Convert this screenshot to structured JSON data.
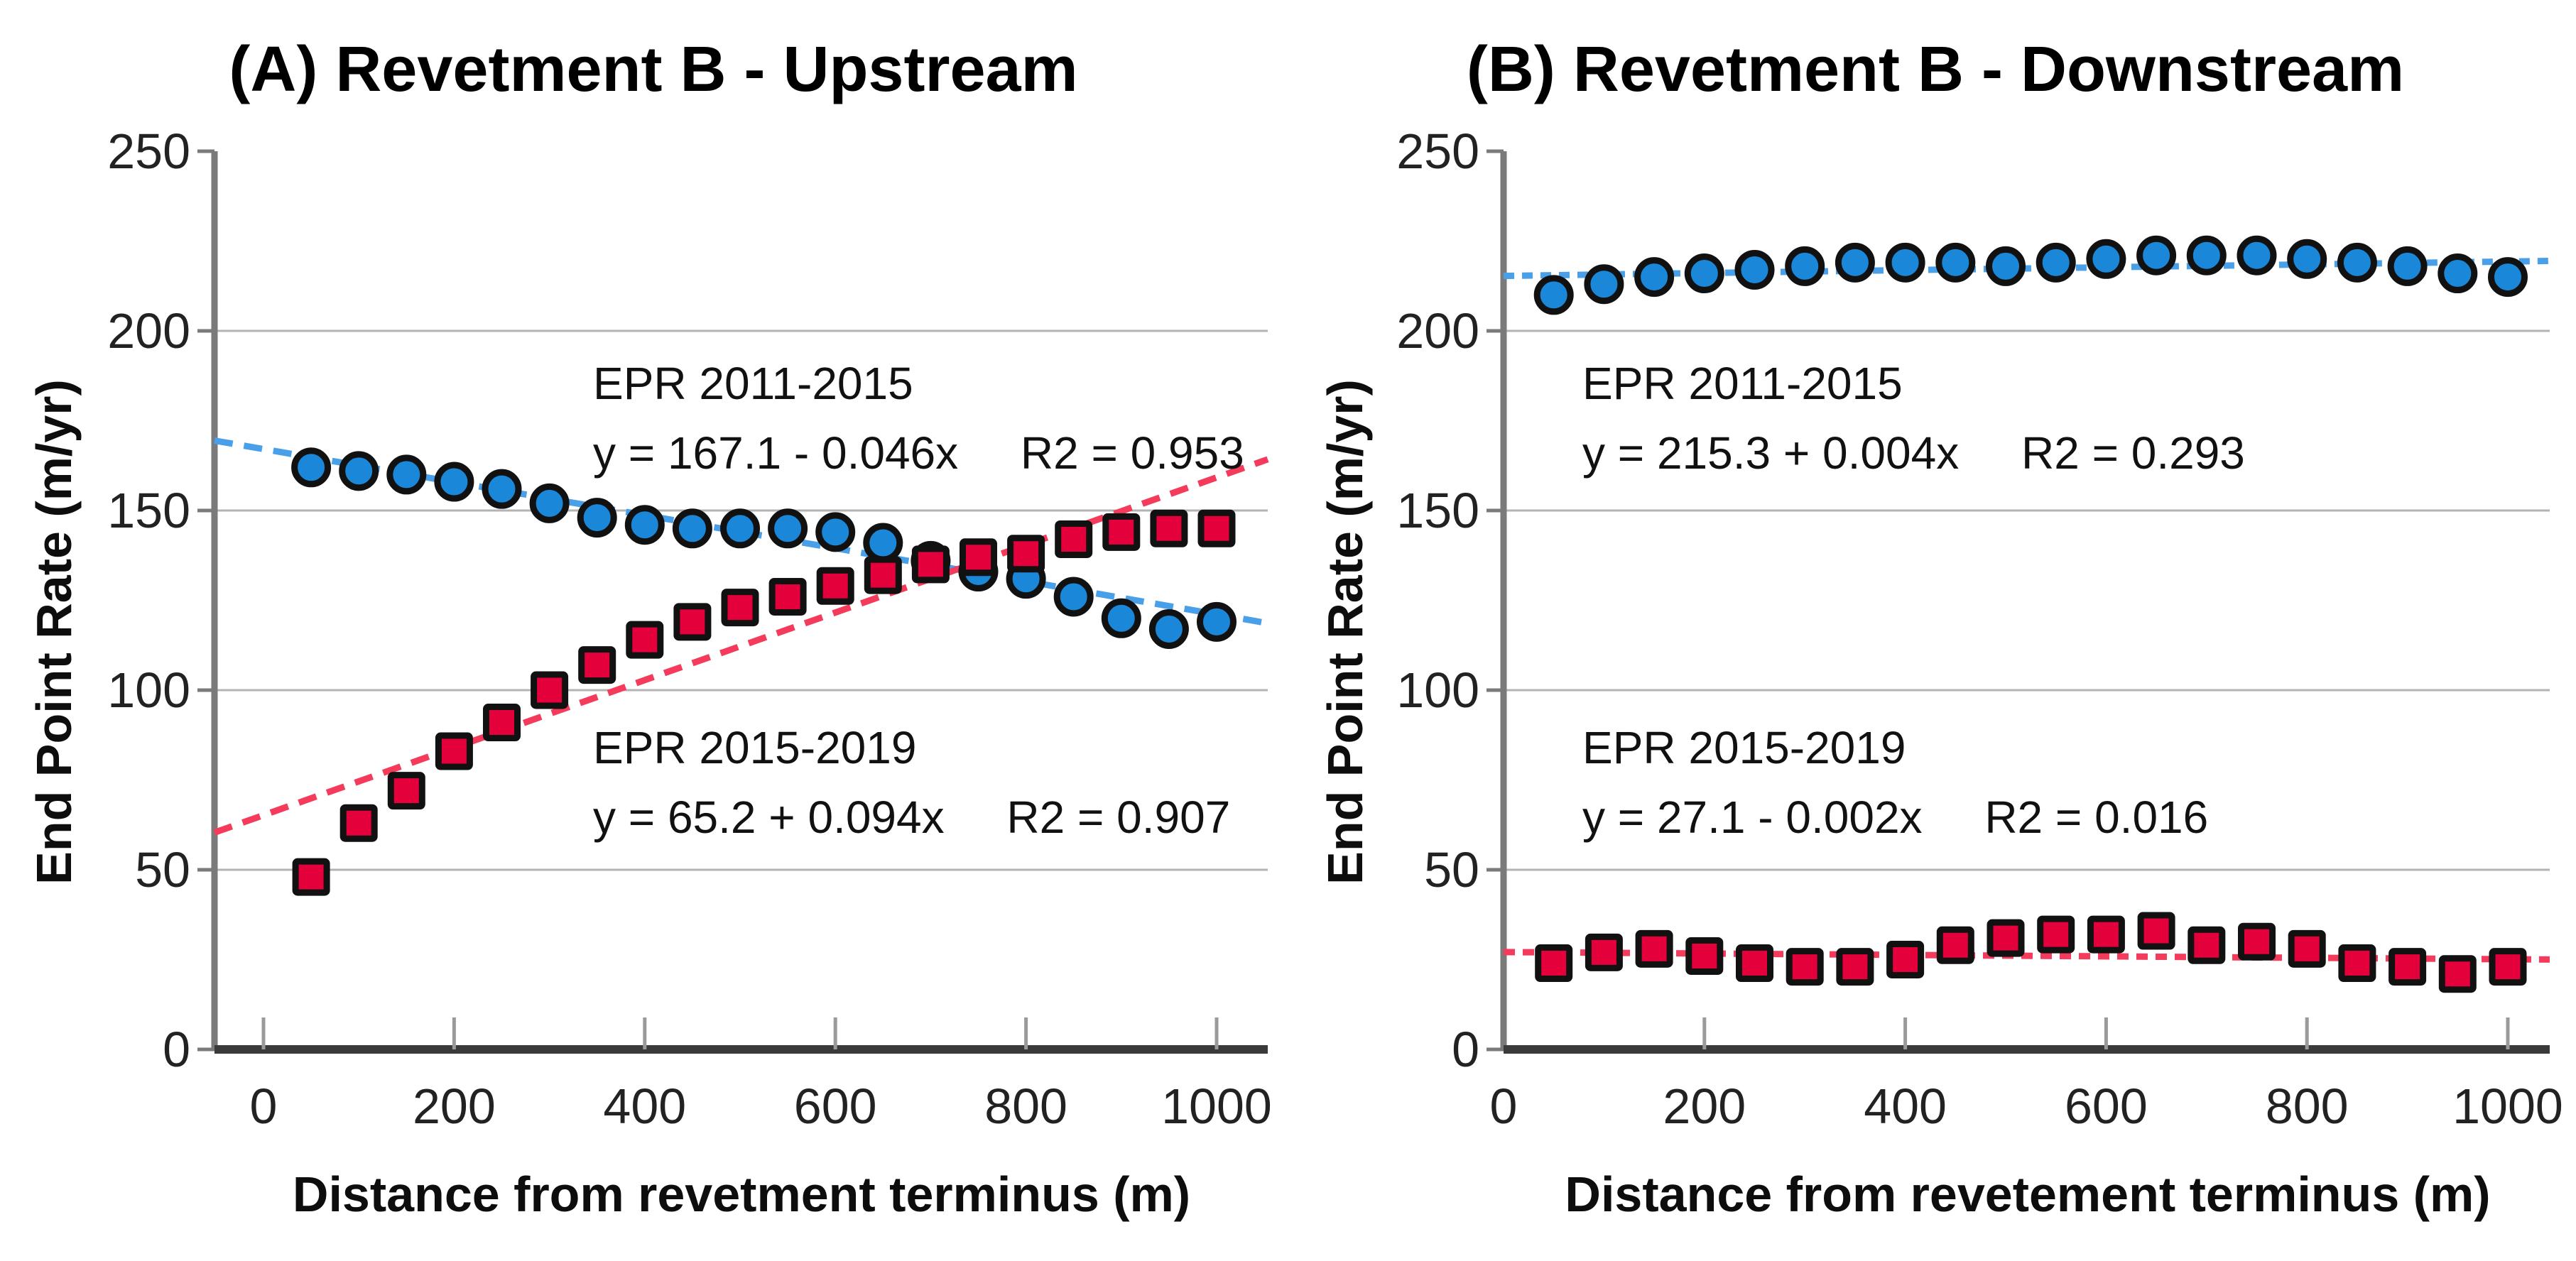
{
  "figure": {
    "background": "#ffffff",
    "text_color": "#000000",
    "grid_color": "#b3b3b3",
    "x_axis_color": "#3a3a3a",
    "y_axis_color": "#7a7a7a",
    "tick_color": "#9a9a9a",
    "marker_outline_color": "#111111"
  },
  "chart_data": [
    {
      "type": "scatter",
      "panel": "A",
      "title": "(A) Revetment B - Upstream",
      "xlabel": "Distance from revetment terminus (m)",
      "ylabel": "End Point Rate (m/yr)",
      "xlim": [
        -55,
        1055
      ],
      "ylim": [
        0,
        250
      ],
      "x_ticks": [
        0,
        200,
        400,
        600,
        800,
        1000
      ],
      "y_ticks": [
        0,
        50,
        100,
        150,
        200,
        250
      ],
      "grid_values": [
        50,
        100,
        150,
        200
      ],
      "grid": "horizontal",
      "legend_position": "inline-annotations",
      "x": [
        50,
        100,
        150,
        200,
        250,
        300,
        350,
        400,
        450,
        500,
        550,
        600,
        650,
        700,
        750,
        800,
        850,
        900,
        950,
        1000
      ],
      "series": [
        {
          "name": "EPR 2011-2015",
          "marker": "circle",
          "marker_color": "#1a87d8",
          "trend_color": "#4aa0e8",
          "trend_dash": "26 16",
          "equation": "y = 167.1 - 0.046x",
          "r2": "R2 = 0.953",
          "intercept": 167.1,
          "slope": -0.046,
          "values": [
            162,
            161,
            160,
            158,
            156,
            152,
            148,
            146,
            145,
            145,
            145,
            144,
            141,
            136,
            133,
            131,
            126,
            120,
            117,
            119
          ]
        },
        {
          "name": "EPR 2015-2019",
          "marker": "square",
          "marker_color": "#e4003b",
          "trend_color": "#f43b5c",
          "trend_dash": "26 16",
          "equation": "y = 65.2 + 0.094x",
          "r2": "R2 = 0.907",
          "intercept": 65.2,
          "slope": 0.094,
          "values": [
            48,
            63,
            72,
            83,
            91,
            100,
            107,
            114,
            119,
            123,
            126,
            129,
            132,
            135,
            137,
            138,
            142,
            144,
            145,
            145
          ]
        }
      ]
    },
    {
      "type": "scatter",
      "panel": "B",
      "title": "(B) Revetment B - Downstream",
      "xlabel": "Distance from revetement terminus (m)",
      "ylabel": "End Point Rate (m/yr)",
      "xlim": [
        0,
        1042
      ],
      "ylim": [
        0,
        250
      ],
      "x_ticks": [
        0,
        200,
        400,
        600,
        800,
        1000
      ],
      "y_ticks": [
        0,
        50,
        100,
        150,
        200,
        250
      ],
      "grid_values": [
        50,
        100,
        150,
        200
      ],
      "grid": "horizontal",
      "legend_position": "inline-annotations",
      "x": [
        50,
        100,
        150,
        200,
        250,
        300,
        350,
        400,
        450,
        500,
        550,
        600,
        650,
        700,
        750,
        800,
        850,
        900,
        950,
        1000
      ],
      "series": [
        {
          "name": "EPR 2011-2015",
          "marker": "circle",
          "marker_color": "#1a87d8",
          "trend_color": "#4aa0e8",
          "trend_dash": "15 11",
          "equation": "y = 215.3 + 0.004x",
          "r2": "R2 = 0.293",
          "intercept": 215.3,
          "slope": 0.004,
          "values": [
            210,
            213,
            215,
            216,
            217,
            218,
            219,
            219,
            219,
            218,
            219,
            220,
            221,
            221,
            221,
            220,
            219,
            218,
            216,
            215
          ]
        },
        {
          "name": "EPR 2015-2019",
          "marker": "square",
          "marker_color": "#e4003b",
          "trend_color": "#f43b5c",
          "trend_dash": "16 11",
          "equation": "y = 27.1 - 0.002x",
          "r2": "R2 = 0.016",
          "intercept": 27.1,
          "slope": -0.002,
          "values": [
            24,
            27,
            28,
            26,
            24,
            23,
            23,
            25,
            29,
            31,
            32,
            32,
            33,
            29,
            30,
            28,
            24,
            23,
            21,
            23
          ]
        }
      ]
    }
  ]
}
